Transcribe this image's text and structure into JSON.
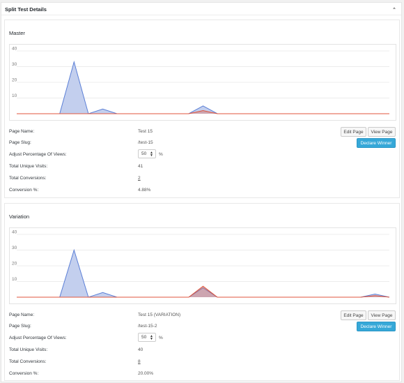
{
  "title": "Split Test Details",
  "labels": {
    "page_name": "Page Name:",
    "page_slug": "Page Slug:",
    "adjust_percentage": "Adjust Percentage Of Views:",
    "total_unique_visits": "Total Unique Visits:",
    "total_conversions": "Total Conversions:",
    "conversion_pct": "Conversion %:"
  },
  "buttons": {
    "edit_page": "Edit Page",
    "view_page": "View Page",
    "declare_winner": "Declare Winner"
  },
  "percent_sign": "%",
  "colors": {
    "visits": "#5b7fd6",
    "visits_fill": "#c3cfee",
    "conversions": "#e0553c",
    "accent": "#36a8d8"
  },
  "variants": [
    {
      "name": "Master",
      "page_name": "Test 15",
      "page_slug": "/test-15",
      "percentage": "50",
      "total_unique_visits": "41",
      "total_conversions": "2",
      "conversion_pct": "4.88%"
    },
    {
      "name": "Variation",
      "page_name": "Test 15 (VARIATION)",
      "page_slug": "/test-15-2",
      "percentage": "50",
      "total_unique_visits": "40",
      "total_conversions": "8",
      "conversion_pct": "20.00%"
    }
  ],
  "chart_data": [
    {
      "type": "area",
      "y_ticks": [
        "40",
        "30",
        "20",
        "10"
      ],
      "ylim": [
        0,
        40
      ],
      "x": [
        0,
        1,
        2,
        3,
        4,
        5,
        6,
        7,
        8,
        9,
        10,
        11,
        12,
        13,
        14,
        15,
        16,
        17,
        18,
        19,
        20,
        21,
        22,
        23,
        24,
        25,
        26
      ],
      "series": [
        {
          "values": [
            0,
            0,
            0,
            0,
            33,
            0,
            3,
            0,
            0,
            0,
            0,
            0,
            0,
            5,
            0,
            0,
            0,
            0,
            0,
            0,
            0,
            0,
            0,
            0,
            0,
            0,
            0
          ]
        },
        {
          "values": [
            0,
            0,
            0,
            0,
            0,
            0,
            0,
            0,
            0,
            0,
            0,
            0,
            0,
            2,
            0,
            0,
            0,
            0,
            0,
            0,
            0,
            0,
            0,
            0,
            0,
            0,
            0
          ]
        }
      ]
    },
    {
      "type": "area",
      "y_ticks": [
        "40",
        "30",
        "20",
        "10"
      ],
      "ylim": [
        0,
        40
      ],
      "x": [
        0,
        1,
        2,
        3,
        4,
        5,
        6,
        7,
        8,
        9,
        10,
        11,
        12,
        13,
        14,
        15,
        16,
        17,
        18,
        19,
        20,
        21,
        22,
        23,
        24,
        25,
        26
      ],
      "series": [
        {
          "values": [
            0,
            0,
            0,
            0,
            30,
            0,
            3,
            0,
            0,
            0,
            0,
            0,
            0,
            6,
            0,
            0,
            0,
            0,
            0,
            0,
            0,
            0,
            0,
            0,
            0,
            2,
            0
          ]
        },
        {
          "values": [
            0,
            0,
            0,
            0,
            0,
            0,
            0,
            0,
            0,
            0,
            0,
            0,
            0,
            7,
            0,
            0,
            0,
            0,
            0,
            0,
            0,
            0,
            0,
            0,
            0,
            1,
            0
          ]
        }
      ]
    }
  ]
}
